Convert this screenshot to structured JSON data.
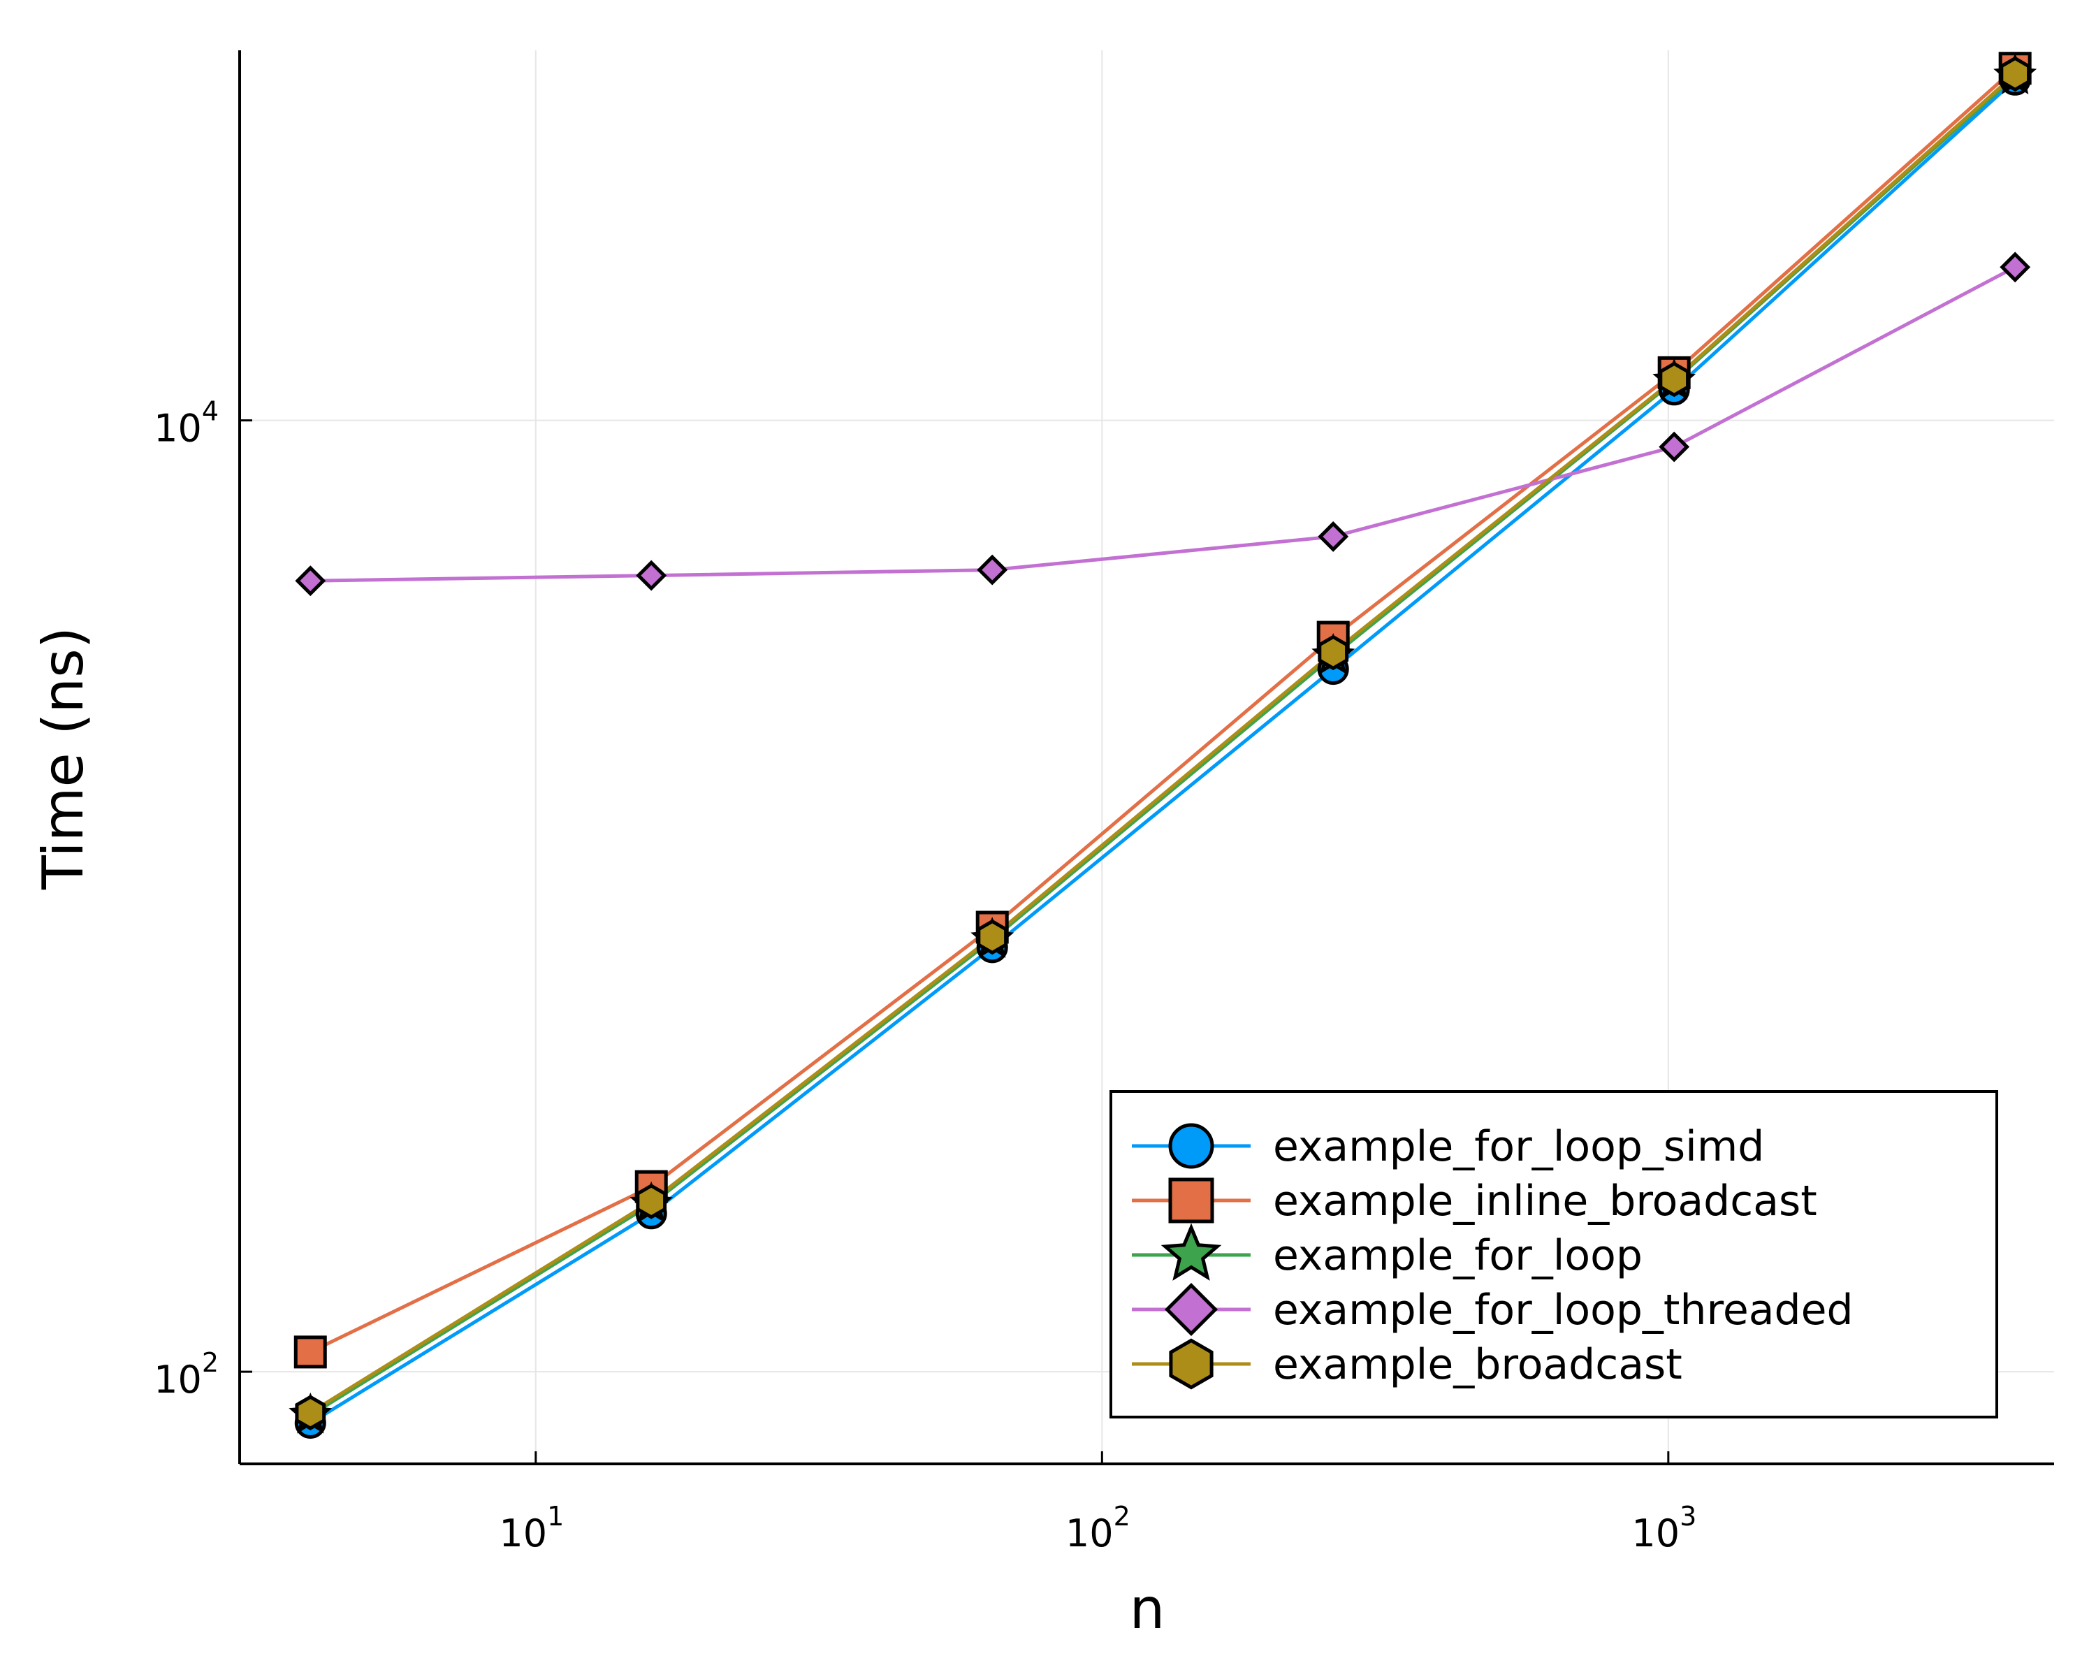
{
  "chart_data": {
    "type": "line",
    "title": "",
    "xlabel": "n",
    "ylabel": "Time (ns)",
    "xscale": "log10",
    "yscale": "log10",
    "xlim": [
      3,
      4800
    ],
    "ylim": [
      64,
      60000
    ],
    "grid": true,
    "legend_position": "bottom-right",
    "x": [
      4,
      16,
      64,
      256,
      1024,
      4096
    ],
    "xticks": [
      {
        "value": 10,
        "base": "10",
        "exp": "1"
      },
      {
        "value": 100,
        "base": "10",
        "exp": "2"
      },
      {
        "value": 1000,
        "base": "10",
        "exp": "3"
      }
    ],
    "yticks": [
      {
        "value": 100,
        "base": "10",
        "exp": "2"
      },
      {
        "value": 10000,
        "base": "10",
        "exp": "4"
      }
    ],
    "series": [
      {
        "name": "example_for_loop_simd",
        "color": "#009af9",
        "marker": "circle",
        "values": [
          78,
          215,
          780,
          3000,
          11600,
          52000
        ]
      },
      {
        "name": "example_inline_broadcast",
        "color": "#e26f46",
        "marker": "square",
        "values": [
          110,
          245,
          860,
          3500,
          12600,
          55000
        ]
      },
      {
        "name": "example_for_loop",
        "color": "#3da44d",
        "marker": "star",
        "values": [
          81,
          225,
          810,
          3200,
          12100,
          53000
        ]
      },
      {
        "name": "example_for_loop_threaded",
        "color": "#c271d2",
        "marker": "diamond",
        "values": [
          4600,
          4720,
          4850,
          5700,
          8800,
          21000
        ]
      },
      {
        "name": "example_broadcast",
        "color": "#ac8d18",
        "marker": "hexagon",
        "values": [
          82,
          228,
          820,
          3250,
          12200,
          53500
        ]
      }
    ]
  }
}
